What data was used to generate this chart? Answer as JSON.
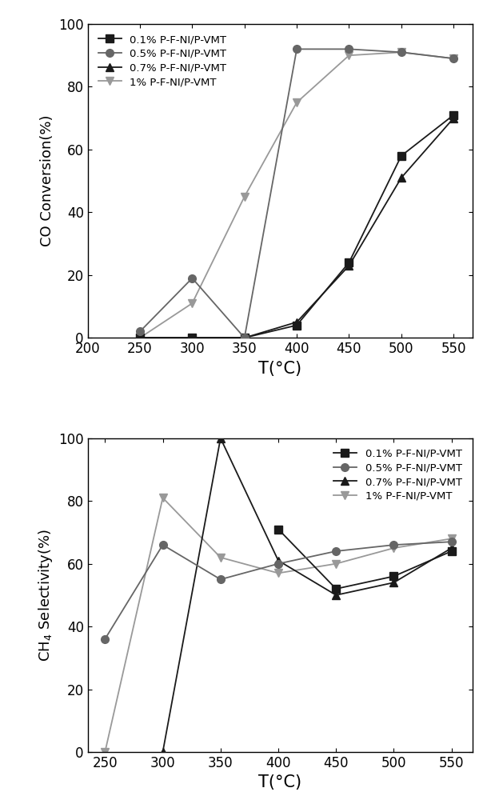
{
  "top_chart": {
    "ylabel": "CO Conversion(%)",
    "xlabel": "T(°C)",
    "xlim": [
      200,
      568
    ],
    "ylim": [
      0,
      100
    ],
    "xticks": [
      200,
      250,
      300,
      350,
      400,
      450,
      500,
      550
    ],
    "yticks": [
      0,
      20,
      40,
      60,
      80,
      100
    ],
    "series": [
      {
        "label": "0.1% P-F-NI/P-VMT",
        "x": [
          250,
          300,
          350,
          400,
          450,
          500,
          550
        ],
        "y": [
          0,
          0,
          0,
          4,
          24,
          58,
          71
        ],
        "marker": "s",
        "color": "#1a1a1a",
        "linestyle": "-",
        "zorder": 3
      },
      {
        "label": "0.5% P-F-NI/P-VMT",
        "x": [
          250,
          300,
          350,
          400,
          450,
          500,
          550
        ],
        "y": [
          2,
          19,
          0,
          92,
          92,
          91,
          89
        ],
        "marker": "o",
        "color": "#666666",
        "linestyle": "-",
        "zorder": 4
      },
      {
        "label": "0.7% P-F-NI/P-VMT",
        "x": [
          250,
          300,
          350,
          400,
          450,
          500,
          550
        ],
        "y": [
          0,
          0,
          0,
          5,
          23,
          51,
          70
        ],
        "marker": "^",
        "color": "#1a1a1a",
        "linestyle": "-",
        "zorder": 3
      },
      {
        "label": "1% P-F-NI/P-VMT",
        "x": [
          250,
          300,
          350,
          400,
          450,
          500,
          550
        ],
        "y": [
          0,
          11,
          45,
          75,
          90,
          91,
          89
        ],
        "marker": "v",
        "color": "#999999",
        "linestyle": "-",
        "zorder": 2
      }
    ]
  },
  "bottom_chart": {
    "ylabel": "CH$_4$ Selectivity(%)",
    "xlabel": "T(°C)",
    "xlim": [
      235,
      568
    ],
    "ylim": [
      0,
      100
    ],
    "xticks": [
      250,
      300,
      350,
      400,
      450,
      500,
      550
    ],
    "yticks": [
      0,
      20,
      40,
      60,
      80,
      100
    ],
    "series": [
      {
        "label": "0.1% P-F-NI/P-VMT",
        "x": [
          400,
          450,
          500,
          550
        ],
        "y": [
          71,
          52,
          56,
          64
        ],
        "marker": "s",
        "color": "#1a1a1a",
        "linestyle": "-",
        "zorder": 3
      },
      {
        "label": "0.5% P-F-NI/P-VMT",
        "x": [
          250,
          300,
          350,
          400,
          450,
          500,
          550
        ],
        "y": [
          36,
          66,
          55,
          60,
          64,
          66,
          67
        ],
        "marker": "o",
        "color": "#666666",
        "linestyle": "-",
        "zorder": 4
      },
      {
        "label": "0.7% P-F-NI/P-VMT",
        "x": [
          300,
          350,
          400,
          450,
          500,
          550
        ],
        "y": [
          0,
          100,
          61,
          50,
          54,
          65
        ],
        "marker": "^",
        "color": "#1a1a1a",
        "linestyle": "-",
        "zorder": 3
      },
      {
        "label": "1% P-F-NI/P-VMT",
        "x": [
          250,
          300,
          350,
          400,
          450,
          500,
          550
        ],
        "y": [
          0,
          81,
          62,
          57,
          60,
          65,
          68
        ],
        "marker": "v",
        "color": "#999999",
        "linestyle": "-",
        "zorder": 2
      }
    ]
  },
  "fig_width": 6.09,
  "fig_height": 10.0,
  "dpi": 100
}
